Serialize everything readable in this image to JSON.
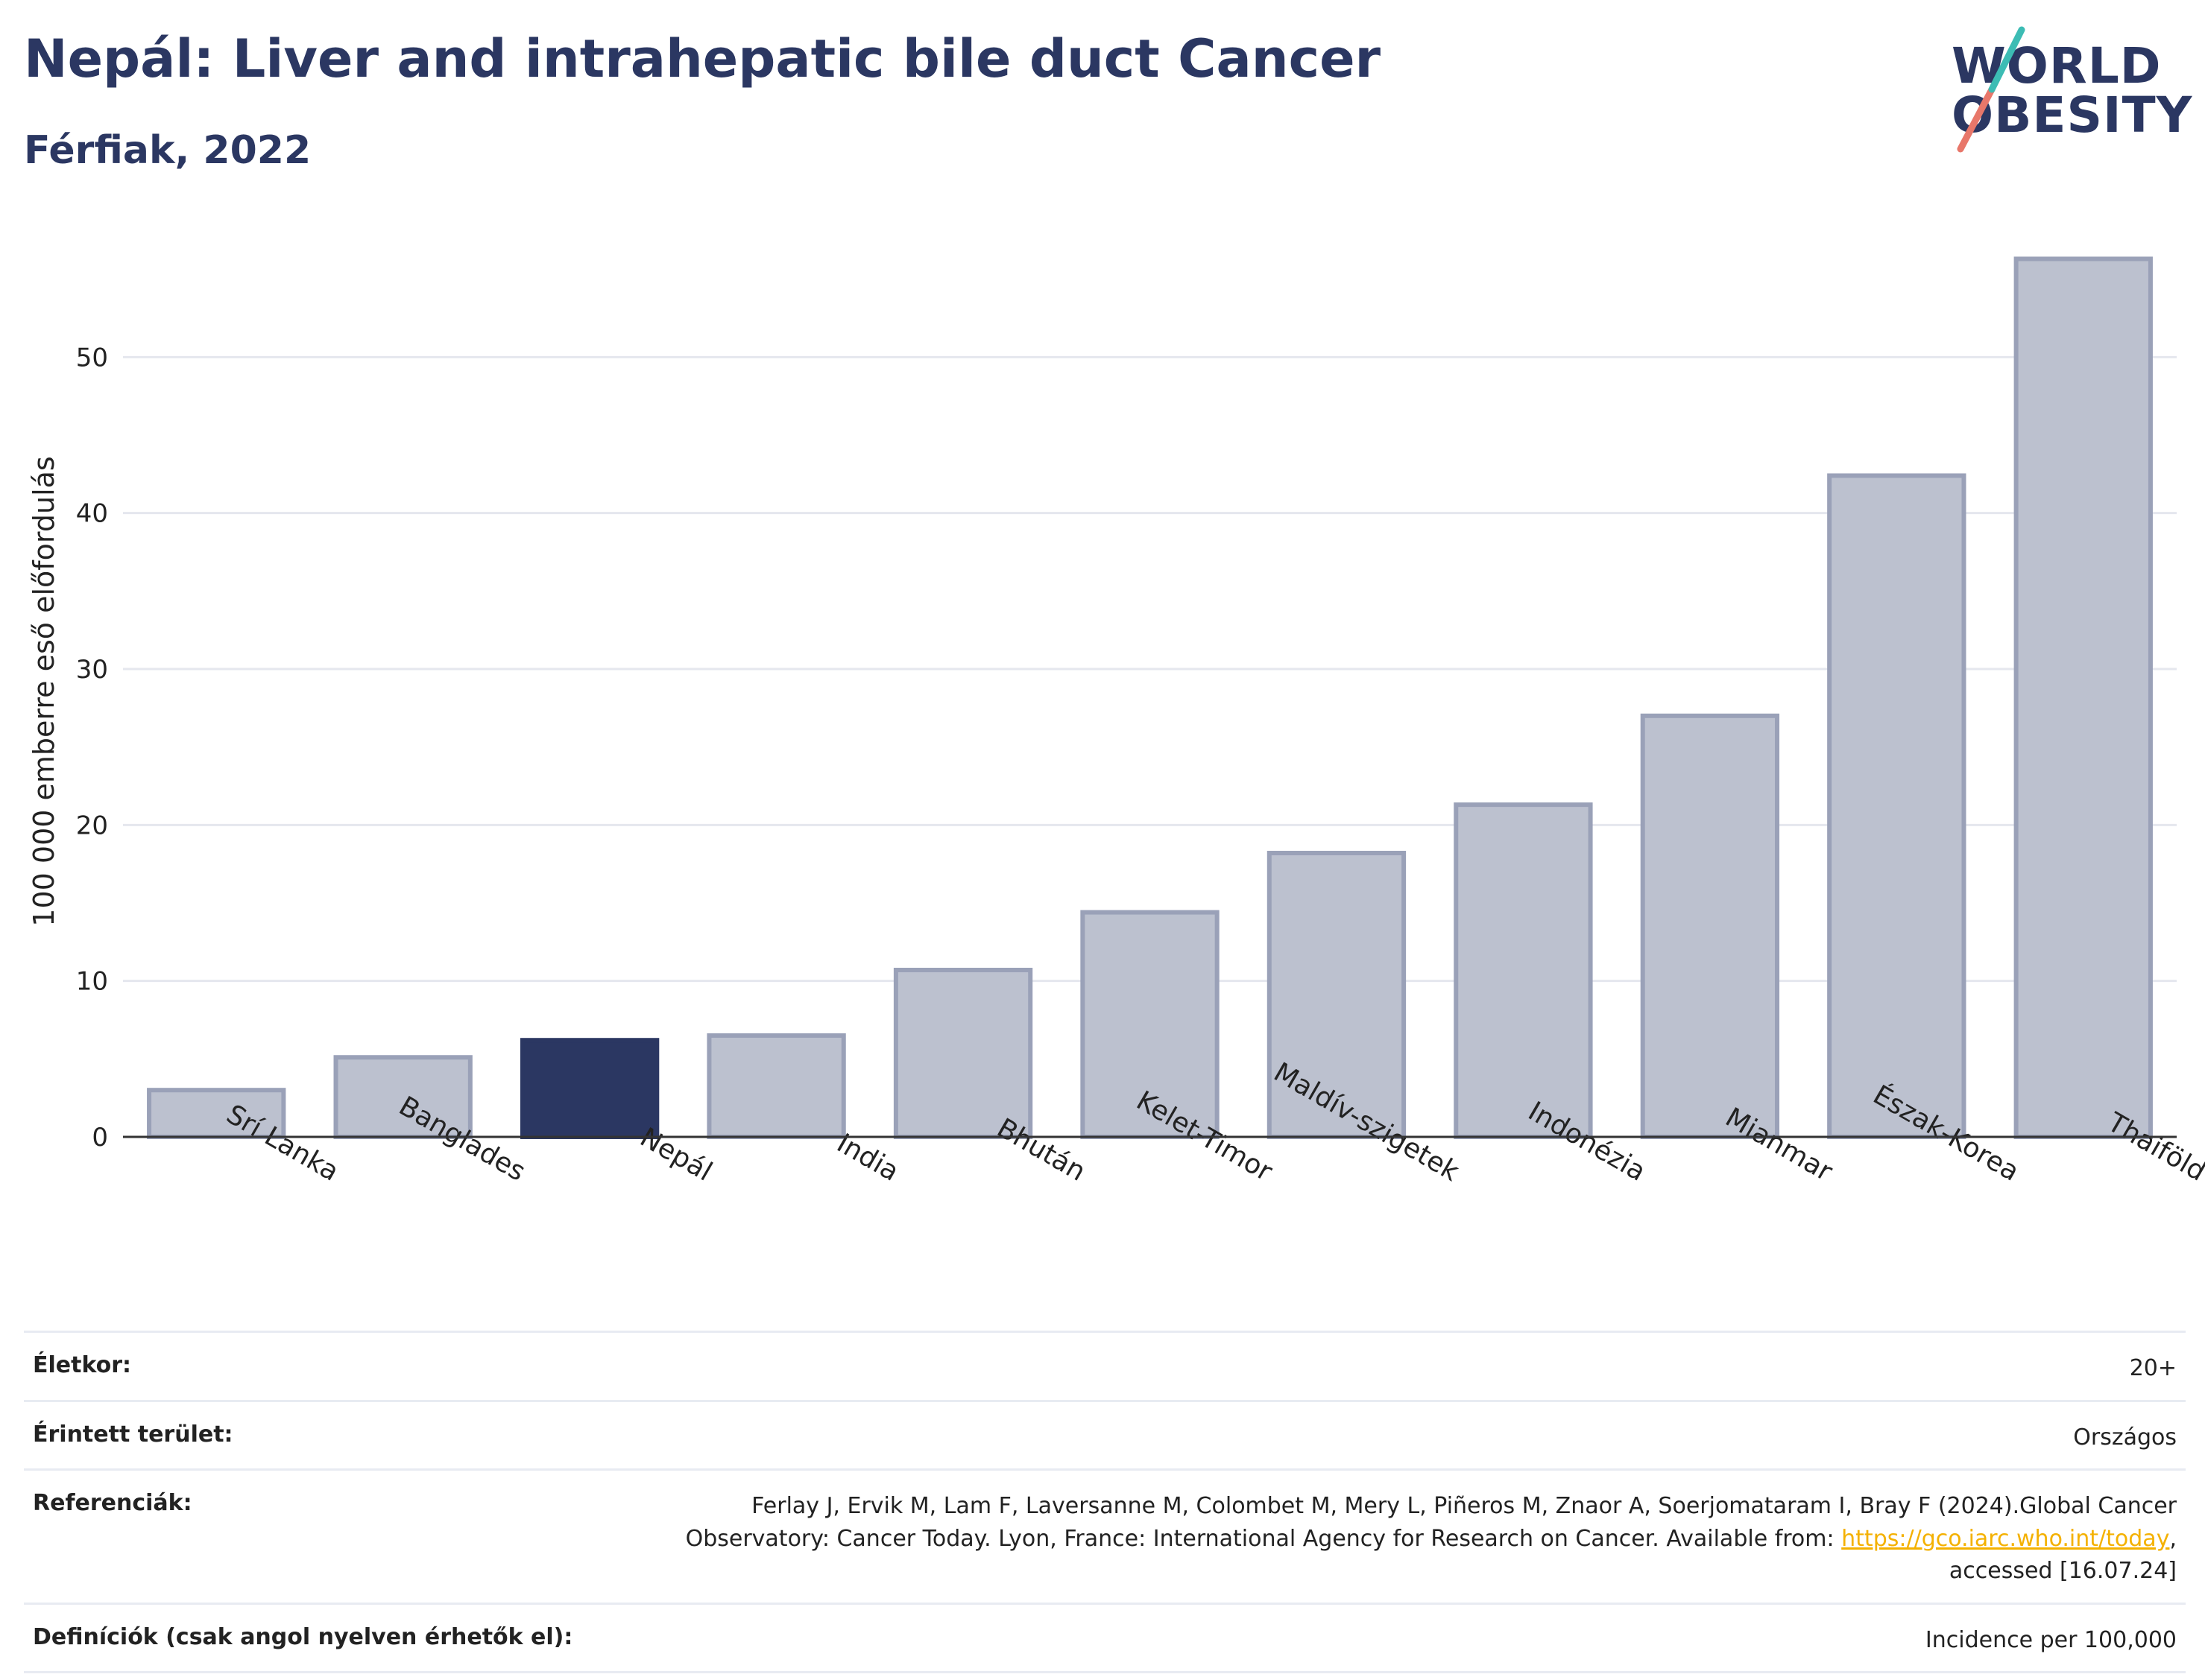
{
  "header": {
    "title": "Nepál: Liver and intrahepatic bile duct Cancer",
    "subtitle": "Férfiak, 2022"
  },
  "logo": {
    "line1": "WORLD",
    "line2": "OBESITY"
  },
  "colors": {
    "highlight": "#2b3762",
    "bar": "#bcc1cf",
    "barStroke": "#9aa1b8",
    "grid": "#e5e7ee"
  },
  "chart_data": {
    "type": "bar",
    "categories": [
      "Srí Lanka",
      "Banglades",
      "Nepál",
      "India",
      "Bhután",
      "Kelet-Timor",
      "Maldív-szigetek",
      "Indonézia",
      "Mianmar",
      "Észak-Korea",
      "Thaiföld"
    ],
    "values": [
      3.0,
      5.1,
      6.2,
      6.5,
      10.7,
      14.4,
      18.2,
      21.3,
      27.0,
      42.4,
      56.3
    ],
    "highlight": "Nepál",
    "ylabel": "100 000 emberre eső előfordulás",
    "yticks": [
      0,
      10,
      20,
      30,
      40,
      50
    ],
    "ylim": [
      0,
      60
    ],
    "grid": true
  },
  "footer": {
    "age_label": "Életkor:",
    "age_value": "20+",
    "area_label": "Érintett terület:",
    "area_value": "Országos",
    "ref_label": "Referenciák:",
    "ref_text_1": "Ferlay J, Ervik M, Lam F, Laversanne M, Colombet M, Mery L, Piñeros M, Znaor A, Soerjomataram I, Bray F (2024).Global Cancer Observatory: Cancer Today. Lyon, France: International Agency for Research on Cancer. Available from: ",
    "ref_link": "https://gco.iarc.who.int/today",
    "ref_text_2": ", accessed [16.07.24]",
    "def_label": "Definíciók (csak angol nyelven érhetők el):",
    "def_value": "Incidence per 100,000"
  }
}
